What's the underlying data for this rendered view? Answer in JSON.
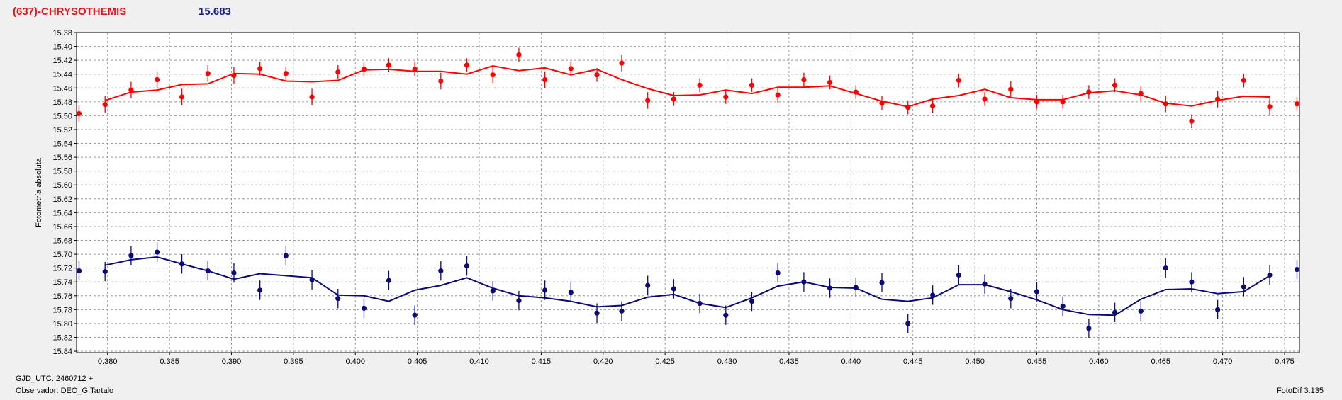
{
  "header": {
    "object_name": "(637)-CHRYSOTHEMIS",
    "reference_mag": "15.683"
  },
  "footer": {
    "gjd_label": "GJD_UTC: 2460712 +",
    "observer_label": "Observador: DEO_G.Tartalo",
    "software_label": "FotoDif 3.135"
  },
  "chart_data": {
    "type": "scatter",
    "ylabel": "Fotometría absoluta",
    "xlim": [
      0.3775,
      0.4762
    ],
    "ylim": [
      15.38,
      15.842
    ],
    "y_inverted": true,
    "grid": true,
    "x_ticks": [
      "0.380",
      "0.385",
      "0.390",
      "0.395",
      "0.400",
      "0.405",
      "0.410",
      "0.415",
      "0.420",
      "0.425",
      "0.430",
      "0.435",
      "0.440",
      "0.445",
      "0.450",
      "0.455",
      "0.460",
      "0.465",
      "0.470",
      "0.475"
    ],
    "y_ticks": [
      "15.38",
      "15.40",
      "15.42",
      "15.44",
      "15.46",
      "15.48",
      "15.50",
      "15.52",
      "15.54",
      "15.56",
      "15.58",
      "15.60",
      "15.62",
      "15.64",
      "15.66",
      "15.68",
      "15.70",
      "15.72",
      "15.74",
      "15.76",
      "15.78",
      "15.80",
      "15.82",
      "15.84"
    ],
    "series": [
      {
        "color": "#ff0000",
        "x": [
          0.3777,
          0.3798,
          0.3819,
          0.384,
          0.386,
          0.3881,
          0.3902,
          0.3923,
          0.3944,
          0.3965,
          0.3986,
          0.4007,
          0.4027,
          0.4048,
          0.4069,
          0.409,
          0.4111,
          0.4132,
          0.4153,
          0.4174,
          0.4195,
          0.4215,
          0.4236,
          0.4257,
          0.4278,
          0.4299,
          0.432,
          0.4341,
          0.4362,
          0.4383,
          0.4404,
          0.4425,
          0.4446,
          0.4466,
          0.4487,
          0.4508,
          0.4529,
          0.455,
          0.4571,
          0.4592,
          0.4613,
          0.4634,
          0.4654,
          0.4675,
          0.4696,
          0.4717,
          0.4738,
          0.476
        ],
        "y": [
          15.497,
          15.484,
          15.463,
          15.448,
          15.473,
          15.439,
          15.442,
          15.432,
          15.439,
          15.473,
          15.437,
          15.433,
          15.427,
          15.433,
          15.45,
          15.427,
          15.441,
          15.412,
          15.448,
          15.432,
          15.441,
          15.424,
          15.478,
          15.476,
          15.456,
          15.473,
          15.456,
          15.47,
          15.448,
          15.452,
          15.466,
          15.482,
          15.488,
          15.486,
          15.449,
          15.476,
          15.462,
          15.48,
          15.48,
          15.466,
          15.456,
          15.468,
          15.483,
          15.508,
          15.476,
          15.449,
          15.487,
          15.483
        ],
        "err": [
          0.012,
          0.012,
          0.012,
          0.012,
          0.012,
          0.012,
          0.012,
          0.01,
          0.01,
          0.012,
          0.01,
          0.01,
          0.01,
          0.01,
          0.012,
          0.01,
          0.012,
          0.01,
          0.012,
          0.01,
          0.01,
          0.012,
          0.012,
          0.01,
          0.01,
          0.01,
          0.01,
          0.012,
          0.01,
          0.01,
          0.01,
          0.01,
          0.01,
          0.01,
          0.01,
          0.01,
          0.012,
          0.01,
          0.01,
          0.01,
          0.01,
          0.01,
          0.012,
          0.01,
          0.012,
          0.01,
          0.012,
          0.01
        ],
        "fit_x": [
          0.3798,
          0.3819,
          0.384,
          0.386,
          0.3881,
          0.3902,
          0.3923,
          0.3944,
          0.3965,
          0.3986,
          0.4007,
          0.4027,
          0.4048,
          0.4069,
          0.409,
          0.4111,
          0.4132,
          0.4153,
          0.4174,
          0.4195,
          0.4215,
          0.4236,
          0.4257,
          0.4278,
          0.4299,
          0.432,
          0.4341,
          0.4362,
          0.4383,
          0.4404,
          0.4425,
          0.4446,
          0.4466,
          0.4487,
          0.4508,
          0.4529,
          0.455,
          0.4571,
          0.4592,
          0.4613,
          0.4634,
          0.4654,
          0.4675,
          0.4696,
          0.4717,
          0.4738
        ],
        "fit_y": [
          15.478,
          15.466,
          15.463,
          15.455,
          15.454,
          15.439,
          15.44,
          15.45,
          15.451,
          15.449,
          15.434,
          15.433,
          15.436,
          15.436,
          15.44,
          15.428,
          15.435,
          15.431,
          15.441,
          15.433,
          15.448,
          15.461,
          15.471,
          15.47,
          15.463,
          15.468,
          15.459,
          15.459,
          15.457,
          15.468,
          15.479,
          15.487,
          15.476,
          15.471,
          15.462,
          15.474,
          15.477,
          15.477,
          15.467,
          15.464,
          15.47,
          15.482,
          15.486,
          15.478,
          15.472,
          15.473
        ]
      },
      {
        "color": "#0a0a7a",
        "x": [
          0.3777,
          0.3798,
          0.3819,
          0.384,
          0.386,
          0.3881,
          0.3902,
          0.3923,
          0.3944,
          0.3965,
          0.3986,
          0.4007,
          0.4027,
          0.4048,
          0.4069,
          0.409,
          0.4111,
          0.4132,
          0.4153,
          0.4174,
          0.4195,
          0.4215,
          0.4236,
          0.4257,
          0.4278,
          0.4299,
          0.432,
          0.4341,
          0.4362,
          0.4383,
          0.4404,
          0.4425,
          0.4446,
          0.4466,
          0.4487,
          0.4508,
          0.4529,
          0.455,
          0.4571,
          0.4592,
          0.4613,
          0.4634,
          0.4654,
          0.4675,
          0.4696,
          0.4717,
          0.4738,
          0.476
        ],
        "y": [
          15.724,
          15.725,
          15.702,
          15.697,
          15.714,
          15.724,
          15.727,
          15.752,
          15.702,
          15.737,
          15.764,
          15.778,
          15.738,
          15.788,
          15.724,
          15.717,
          15.753,
          15.767,
          15.752,
          15.755,
          15.785,
          15.782,
          15.745,
          15.75,
          15.771,
          15.788,
          15.768,
          15.727,
          15.74,
          15.749,
          15.748,
          15.741,
          15.8,
          15.759,
          15.73,
          15.743,
          15.764,
          15.754,
          15.775,
          15.807,
          15.784,
          15.782,
          15.72,
          15.74,
          15.78,
          15.747,
          15.73,
          15.722
        ],
        "err": [
          0.014,
          0.014,
          0.014,
          0.014,
          0.014,
          0.014,
          0.014,
          0.014,
          0.014,
          0.014,
          0.014,
          0.014,
          0.014,
          0.014,
          0.014,
          0.014,
          0.014,
          0.014,
          0.014,
          0.014,
          0.014,
          0.014,
          0.014,
          0.014,
          0.014,
          0.014,
          0.014,
          0.014,
          0.014,
          0.014,
          0.014,
          0.014,
          0.014,
          0.014,
          0.014,
          0.014,
          0.014,
          0.014,
          0.014,
          0.014,
          0.014,
          0.014,
          0.014,
          0.014,
          0.014,
          0.014,
          0.014,
          0.014
        ],
        "fit_x": [
          0.3798,
          0.3819,
          0.384,
          0.386,
          0.3881,
          0.3902,
          0.3923,
          0.3944,
          0.3965,
          0.3986,
          0.4007,
          0.4027,
          0.4048,
          0.4069,
          0.409,
          0.4111,
          0.4132,
          0.4153,
          0.4174,
          0.4195,
          0.4215,
          0.4236,
          0.4257,
          0.4278,
          0.4299,
          0.432,
          0.4341,
          0.4362,
          0.4383,
          0.4404,
          0.4425,
          0.4446,
          0.4466,
          0.4487,
          0.4508,
          0.4529,
          0.455,
          0.4571,
          0.4592,
          0.4613,
          0.4634,
          0.4654,
          0.4675,
          0.4696,
          0.4717,
          0.4738
        ],
        "fit_y": [
          15.716,
          15.708,
          15.704,
          15.714,
          15.724,
          15.736,
          15.728,
          15.731,
          15.734,
          15.759,
          15.76,
          15.768,
          15.752,
          15.745,
          15.734,
          15.749,
          15.76,
          15.763,
          15.768,
          15.776,
          15.774,
          15.762,
          15.758,
          15.771,
          15.777,
          15.763,
          15.746,
          15.74,
          15.748,
          15.749,
          15.765,
          15.768,
          15.763,
          15.744,
          15.744,
          15.754,
          15.766,
          15.78,
          15.787,
          15.788,
          15.765,
          15.751,
          15.75,
          15.757,
          15.754,
          15.731
        ]
      }
    ]
  }
}
